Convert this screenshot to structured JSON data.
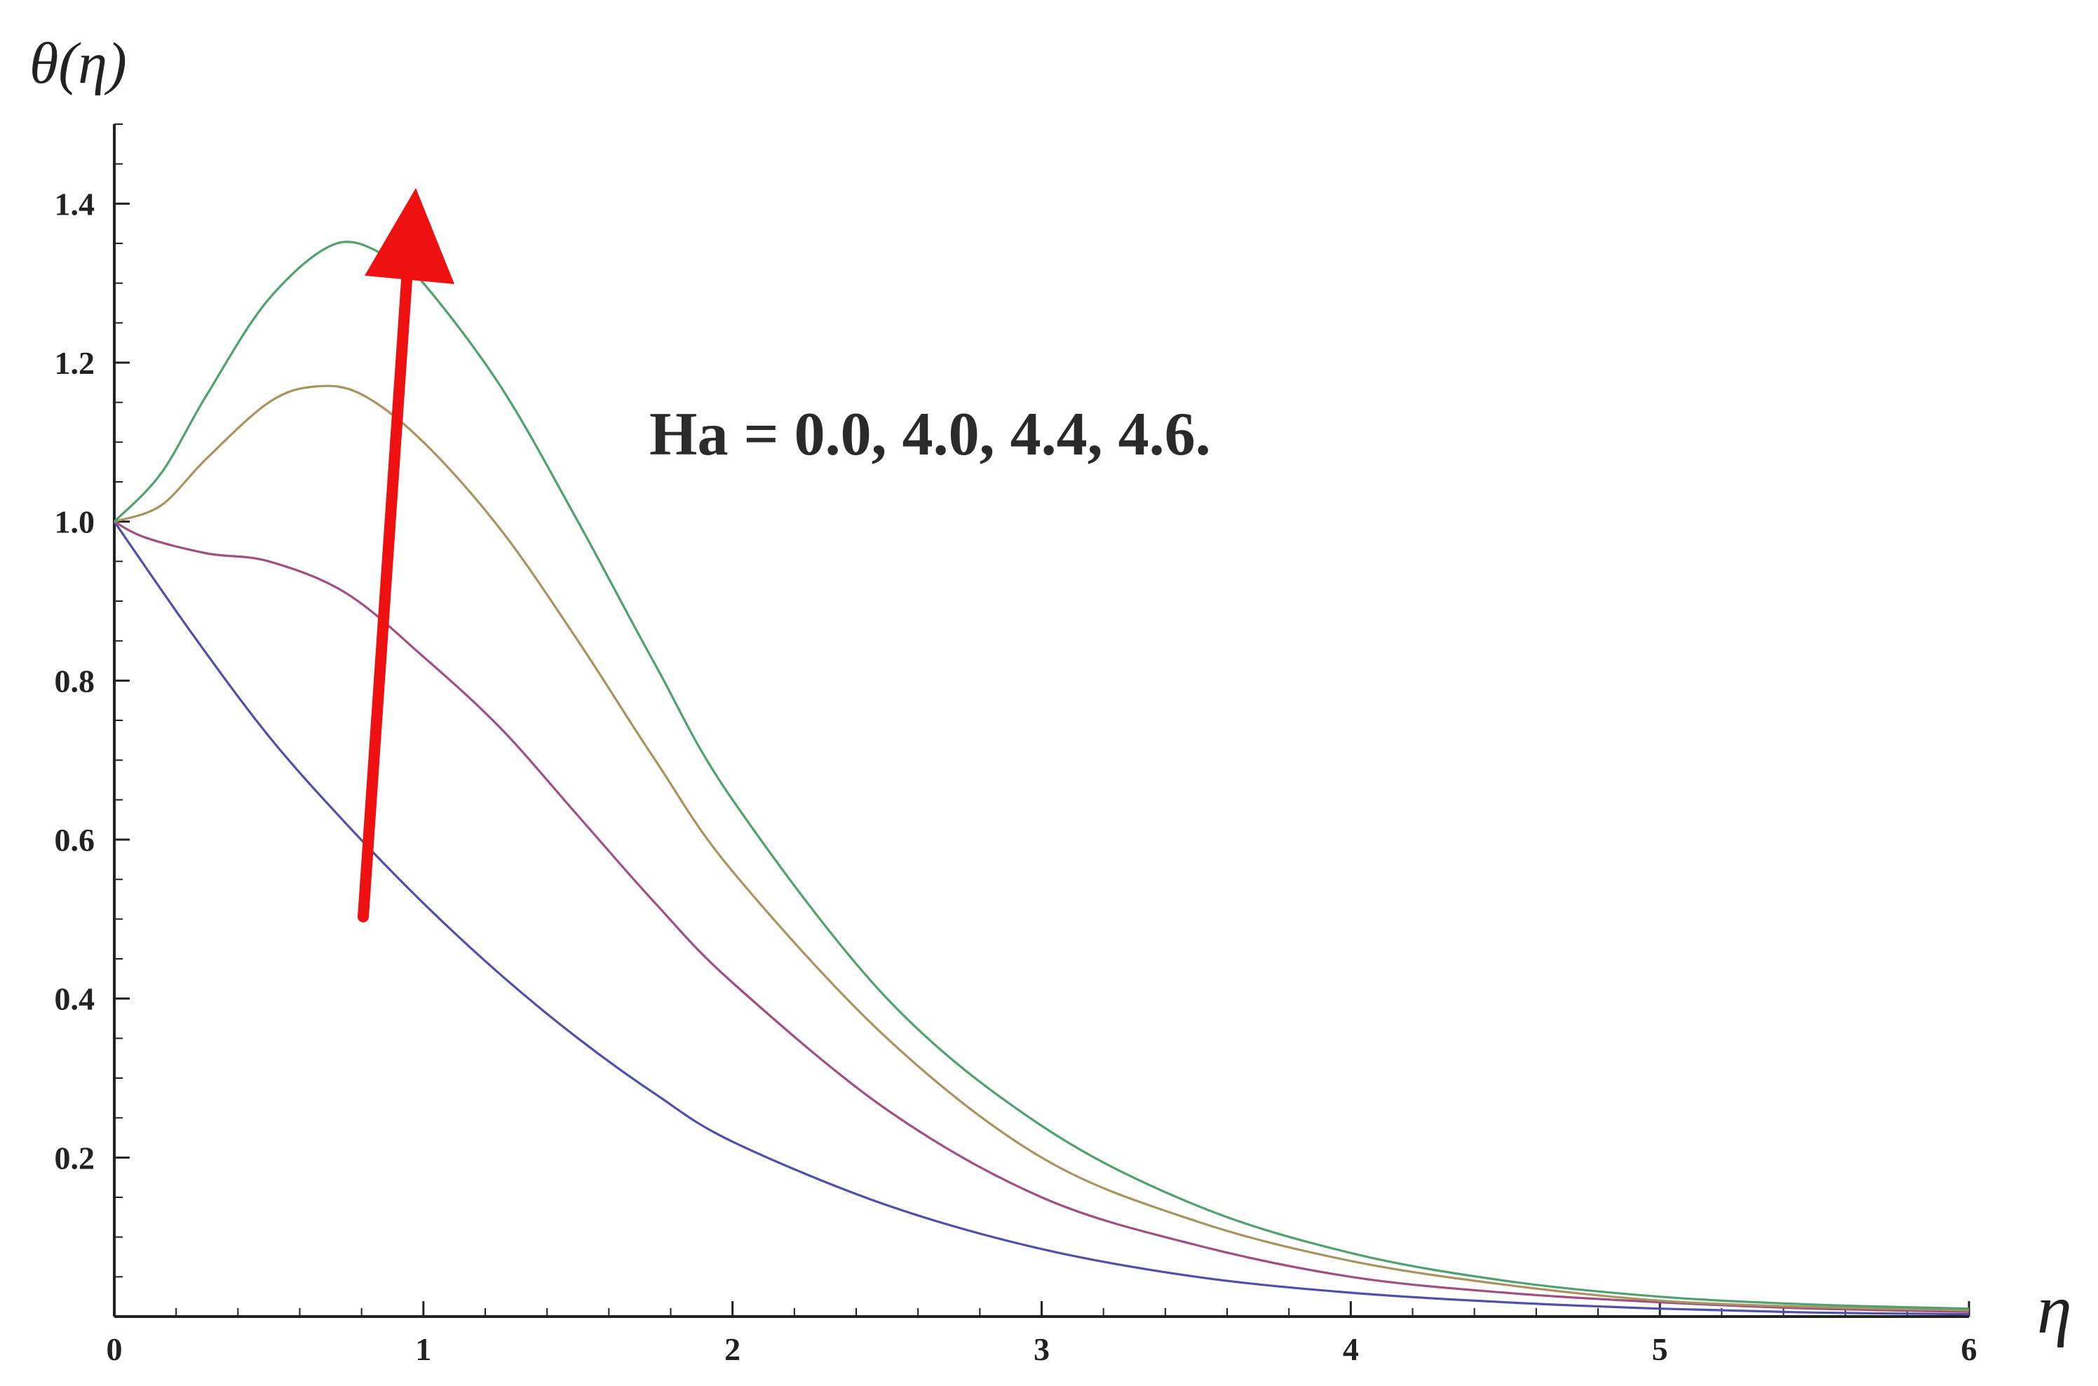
{
  "chart_data": {
    "type": "line",
    "title": "",
    "xlabel": "η",
    "ylabel": "θ(η)",
    "xlim": [
      0,
      6
    ],
    "ylim": [
      0,
      1.5
    ],
    "x_ticks": [
      0,
      1,
      2,
      3,
      4,
      5,
      6
    ],
    "x_tick_labels": [
      "0",
      "1",
      "2",
      "3",
      "4",
      "5",
      "6"
    ],
    "y_ticks": [
      0.2,
      0.4,
      0.6,
      0.8,
      1.0,
      1.2,
      1.4
    ],
    "y_tick_labels": [
      "0.2",
      "0.4",
      "0.6",
      "0.8",
      "1.0",
      "1.2",
      "1.4"
    ],
    "grid": false,
    "legend": "none",
    "annotation": {
      "text": "Ha = 0.0, 4.0, 4.4, 4.6.",
      "arrow_direction": "increasing",
      "arrow_color": "#ee1111"
    },
    "series": [
      {
        "color": "#5050a8",
        "x": [
          0,
          0.25,
          0.5,
          0.75,
          1.0,
          1.25,
          1.5,
          1.75,
          2.0,
          2.5,
          3.0,
          3.5,
          4.0,
          4.5,
          5.0,
          5.5,
          6.0
        ],
        "y": [
          1.0,
          0.86,
          0.73,
          0.62,
          0.52,
          0.43,
          0.35,
          0.28,
          0.22,
          0.14,
          0.085,
          0.05,
          0.03,
          0.018,
          0.01,
          0.005,
          0.003
        ]
      },
      {
        "color": "#a05080",
        "x": [
          0,
          0.1,
          0.3,
          0.5,
          0.75,
          1.0,
          1.25,
          1.5,
          1.75,
          2.0,
          2.5,
          3.0,
          3.5,
          4.0,
          4.5,
          5.0,
          5.5,
          6.0
        ],
        "y": [
          1.0,
          0.98,
          0.96,
          0.95,
          0.91,
          0.83,
          0.74,
          0.63,
          0.52,
          0.42,
          0.26,
          0.15,
          0.09,
          0.05,
          0.03,
          0.018,
          0.01,
          0.006
        ]
      },
      {
        "color": "#a89460",
        "x": [
          0,
          0.15,
          0.3,
          0.5,
          0.65,
          0.8,
          1.0,
          1.25,
          1.5,
          1.75,
          2.0,
          2.5,
          3.0,
          3.5,
          4.0,
          4.5,
          5.0,
          5.5,
          6.0
        ],
        "y": [
          1.0,
          1.02,
          1.08,
          1.15,
          1.17,
          1.16,
          1.1,
          0.99,
          0.85,
          0.7,
          0.56,
          0.35,
          0.2,
          0.12,
          0.07,
          0.04,
          0.02,
          0.012,
          0.008
        ]
      },
      {
        "color": "#50a070",
        "x": [
          0,
          0.15,
          0.3,
          0.5,
          0.72,
          0.9,
          1.0,
          1.25,
          1.5,
          1.75,
          2.0,
          2.5,
          3.0,
          3.5,
          4.0,
          4.5,
          5.0,
          5.5,
          6.0
        ],
        "y": [
          1.0,
          1.06,
          1.16,
          1.28,
          1.35,
          1.33,
          1.3,
          1.17,
          1.0,
          0.82,
          0.65,
          0.4,
          0.24,
          0.14,
          0.08,
          0.045,
          0.025,
          0.015,
          0.01
        ]
      }
    ]
  }
}
